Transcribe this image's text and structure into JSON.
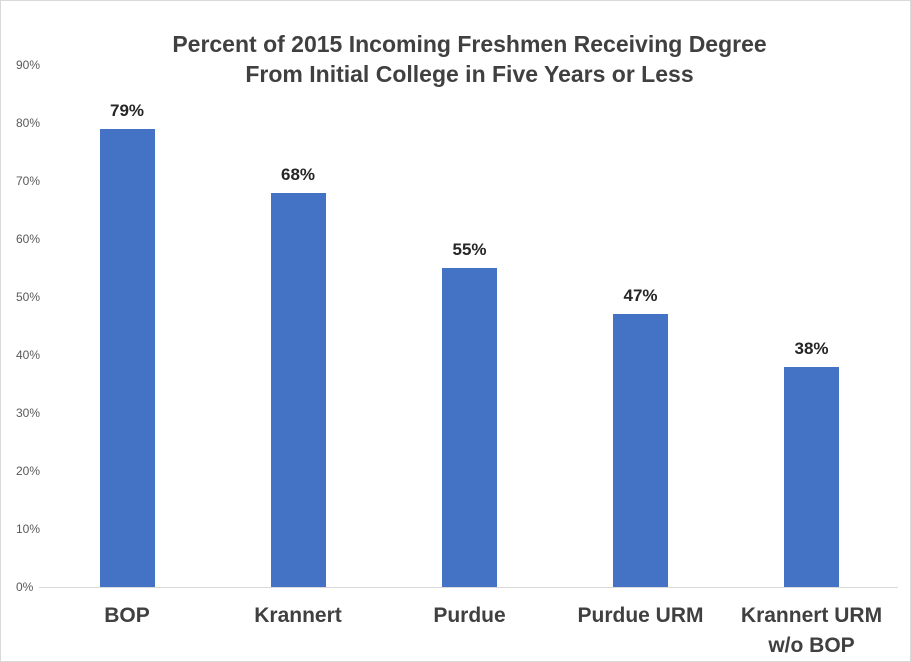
{
  "chart_data": {
    "type": "bar",
    "title": "Percent of 2015 Incoming Freshmen Receiving Degree From Initial College in Five Years or Less",
    "title_lines": [
      "Percent of 2015 Incoming Freshmen Receiving Degree",
      "From Initial College in Five Years or Less"
    ],
    "categories": [
      "BOP",
      "Krannert",
      "Purdue",
      "Purdue URM",
      "Krannert URM\nw/o BOP"
    ],
    "values": [
      79,
      68,
      55,
      47,
      38
    ],
    "data_labels": [
      "79%",
      "68%",
      "55%",
      "47%",
      "38%"
    ],
    "xlabel": "",
    "ylabel": "",
    "ylim": [
      0,
      90
    ],
    "y_tick_step": 10,
    "y_tick_labels": [
      "0%",
      "10%",
      "20%",
      "30%",
      "40%",
      "50%",
      "60%",
      "70%",
      "80%",
      "90%"
    ],
    "grid": false,
    "legend": false,
    "colors": {
      "bar": "#4472C4",
      "title_text": "#404040",
      "category_text": "#404040",
      "value_label_text": "#262626",
      "tick_text": "#595959",
      "axis_line": "#d9d9d9",
      "background": "#ffffff",
      "border": "#d9d9d9"
    }
  }
}
